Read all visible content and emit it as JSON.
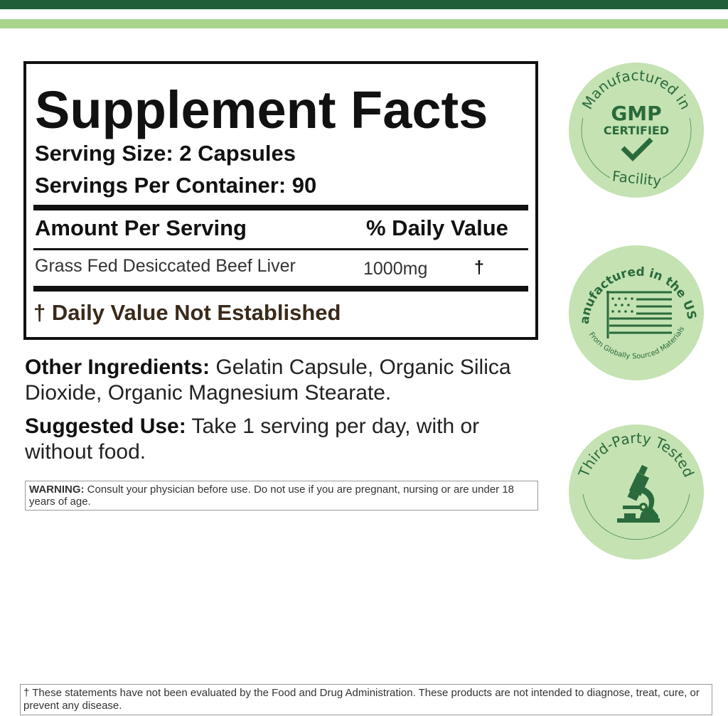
{
  "colors": {
    "dark_green": "#1f5e38",
    "light_green": "#a8d48e",
    "badge_bg": "#c4e2b2",
    "badge_text": "#2a6a3c"
  },
  "facts": {
    "title": "Supplement Facts",
    "serving_size": "Serving Size: 2 Capsules",
    "servings_per_container": "Servings Per Container:  90",
    "amount_header": "Amount Per Serving",
    "dv_header": "% Daily Value",
    "ingredient": {
      "name": "Grass Fed Desiccated Beef Liver",
      "amount": "1000mg",
      "dv": "†"
    },
    "footnote": "† Daily Value Not Established"
  },
  "other_ingredients": {
    "label": "Other Ingredients:",
    "text": " Gelatin Capsule, Organic Silica Dioxide, Organic Magnesium Stearate."
  },
  "suggested_use": {
    "label": "Suggested Use:",
    "text": " Take 1 serving per day, with or without food."
  },
  "warning": {
    "label": "WARNING:",
    "text": " Consult your physician before use. Do not use if you are pregnant, nursing or are under 18 years of age."
  },
  "disclaimer": "† These statements have not been evaluated by the Food and Drug Administration. These products are not intended to diagnose, treat, cure, or prevent any disease.",
  "badges": [
    {
      "top": "Manufactured in",
      "main": "GMP",
      "sub": "CERTIFIED",
      "bottom": "Facility",
      "icon": "checkmark-icon"
    },
    {
      "top": "Manufactured in the USA",
      "bottom": "From Globally Sourced Materials",
      "icon": "us-flag-icon"
    },
    {
      "top": "Third-Party Tested",
      "icon": "microscope-icon"
    }
  ]
}
